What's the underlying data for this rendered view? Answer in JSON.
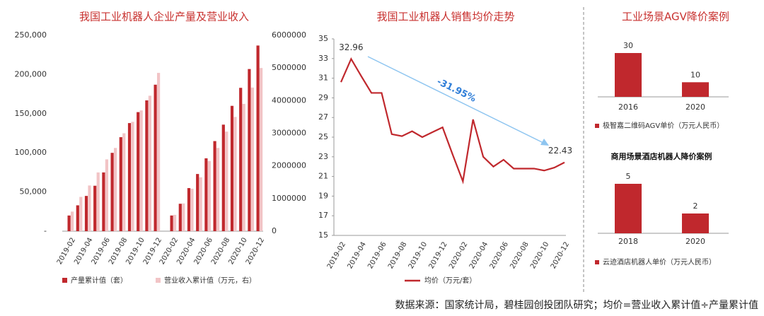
{
  "chart_data": [
    {
      "type": "bar",
      "title": "我国工业机器人企业产量及营业收入",
      "categories": [
        "2019-02",
        null,
        "2019-04",
        null,
        "2019-06",
        null,
        "2019-08",
        null,
        "2019-10",
        null,
        "2019-12",
        "2020-02",
        null,
        "2020-04",
        null,
        "2020-06",
        null,
        "2020-08",
        null,
        "2020-10",
        null,
        "2020-12"
      ],
      "series": [
        {
          "name": "产量累计值（套）",
          "color": "#c0282d",
          "values": [
            20000,
            33000,
            45000,
            58000,
            75000,
            100000,
            120000,
            138000,
            152000,
            167000,
            187000,
            20000,
            35000,
            55000,
            73000,
            93000,
            115000,
            136000,
            160000,
            183000,
            207000,
            237000
          ]
        },
        {
          "name": "营业收入累计值（万元，右）",
          "color": "#f2c4c6",
          "axis": "y2",
          "values": [
            600000,
            1050000,
            1400000,
            1800000,
            2200000,
            2550000,
            3000000,
            3350000,
            3700000,
            4150000,
            4850000,
            500000,
            850000,
            1300000,
            1650000,
            2150000,
            2550000,
            3050000,
            3500000,
            3900000,
            4400000,
            5000000
          ]
        }
      ],
      "ylim": [
        0,
        250000
      ],
      "yticks": [
        {
          "value": 0,
          "label": "-"
        },
        {
          "value": 50000,
          "label": "50,000"
        },
        {
          "value": 100000,
          "label": "100,000"
        },
        {
          "value": 150000,
          "label": "150,000"
        },
        {
          "value": 200000,
          "label": "200,000"
        },
        {
          "value": 250000,
          "label": "250,000"
        }
      ],
      "y2lim": [
        0,
        6000000
      ],
      "y2ticks": [
        0,
        1000000,
        2000000,
        3000000,
        4000000,
        5000000,
        6000000
      ]
    },
    {
      "type": "line",
      "title": "我国工业机器人销售均价走势",
      "categories": [
        "2019-02",
        null,
        "2019-04",
        null,
        "2019-06",
        null,
        "2019-08",
        null,
        "2019-10",
        null,
        "2019-12",
        null,
        "2020-02",
        null,
        "2020-04",
        null,
        "2020-06",
        null,
        "2020-08",
        null,
        "2020-10",
        null,
        "2020-12"
      ],
      "series": [
        {
          "name": "均价（万元/套）",
          "color": "#c0282d",
          "values": [
            30.6,
            32.96,
            31.2,
            29.5,
            29.5,
            25.3,
            25.1,
            25.6,
            25.0,
            25.5,
            26.0,
            23.2,
            20.5,
            26.8,
            23.0,
            22.0,
            22.7,
            21.8,
            21.8,
            21.8,
            21.6,
            21.9,
            22.43
          ]
        }
      ],
      "ylim": [
        15,
        35
      ],
      "yticks": [
        15,
        17,
        19,
        21,
        23,
        25,
        27,
        29,
        31,
        33,
        35
      ],
      "annotation": "-31.95%"
    },
    {
      "type": "bar",
      "title": "工业场景AGV降价案例",
      "categories": [
        "2016",
        "2020"
      ],
      "values": [
        30,
        10
      ],
      "color": "#c0282d",
      "series_name": "极智嘉二维码AGV单价（万元人民币）"
    },
    {
      "type": "bar",
      "title": "商用场景酒店机器人降价案例",
      "categories": [
        "2018",
        "2020"
      ],
      "values": [
        5,
        2
      ],
      "color": "#c0282d",
      "series_name": "云迹酒店机器人单价（万元人民币）"
    }
  ],
  "source": "数据来源：国家统计局，碧桂园创投团队研究；均价=营业收入累计值÷产量累计值"
}
